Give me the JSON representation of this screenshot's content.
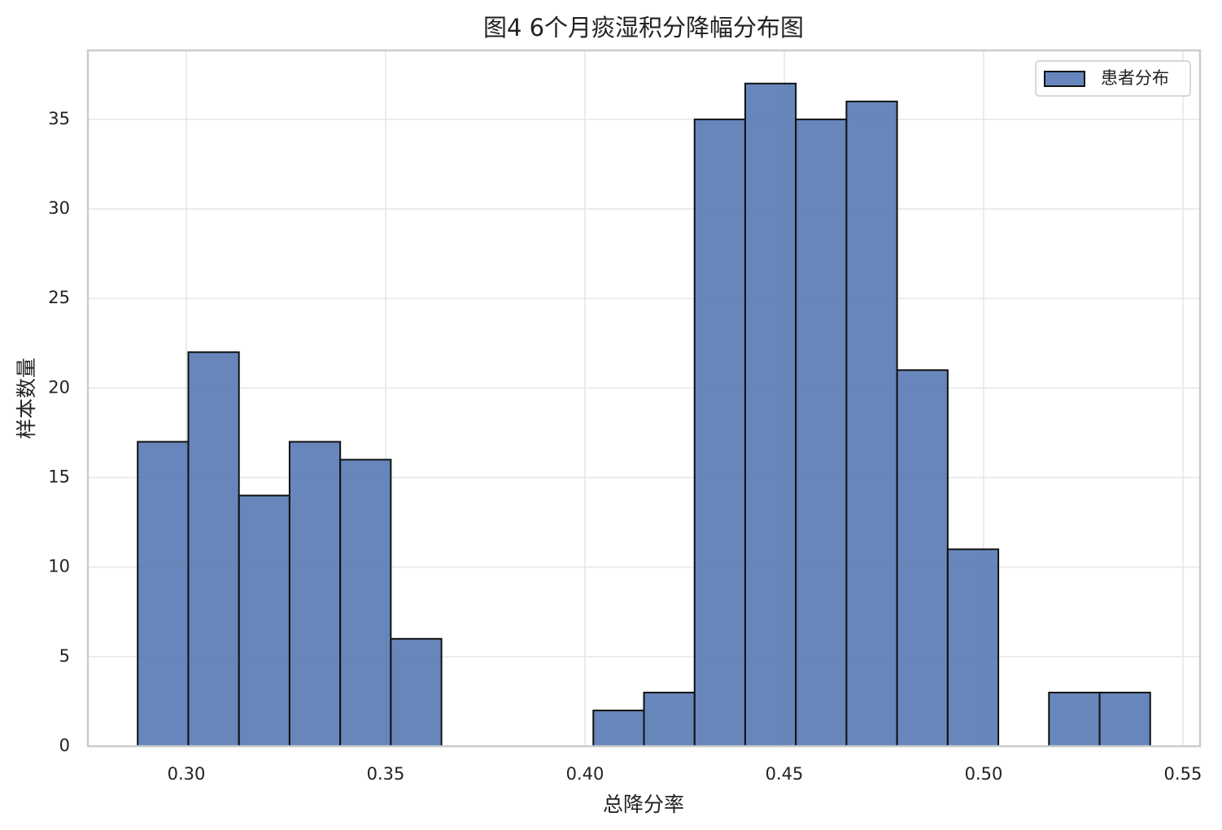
{
  "chart_data": {
    "type": "histogram",
    "title": "图4 6个月痰湿积分降幅分布图",
    "x_label": "总降分率",
    "y_label": "样本数量",
    "bins": [
      0.2878,
      0.3005,
      0.3132,
      0.3259,
      0.3386,
      0.3513,
      0.364,
      0.3767,
      0.3894,
      0.4021,
      0.4148,
      0.4275,
      0.4402,
      0.4529,
      0.4656,
      0.4783,
      0.491,
      0.5037,
      0.5164,
      0.5291,
      0.5418
    ],
    "series": [
      {
        "name": "患者分布",
        "color": "#4c72b0",
        "values": [
          17,
          22,
          14,
          17,
          16,
          6,
          0,
          0,
          0,
          2,
          3,
          35,
          37,
          35,
          36,
          21,
          11,
          0,
          3,
          3
        ]
      }
    ],
    "xlim": [
      0.2753,
      0.5543
    ],
    "ylim": [
      0,
      38.85
    ],
    "xticks": [
      {
        "value": 0.3,
        "label": "0.30"
      },
      {
        "value": 0.35,
        "label": "0.35"
      },
      {
        "value": 0.4,
        "label": "0.40"
      },
      {
        "value": 0.45,
        "label": "0.45"
      },
      {
        "value": 0.5,
        "label": "0.50"
      },
      {
        "value": 0.55,
        "label": "0.55"
      }
    ],
    "yticks": [
      0,
      5,
      10,
      15,
      20,
      25,
      30,
      35
    ],
    "grid": true,
    "legend": "upper right"
  }
}
